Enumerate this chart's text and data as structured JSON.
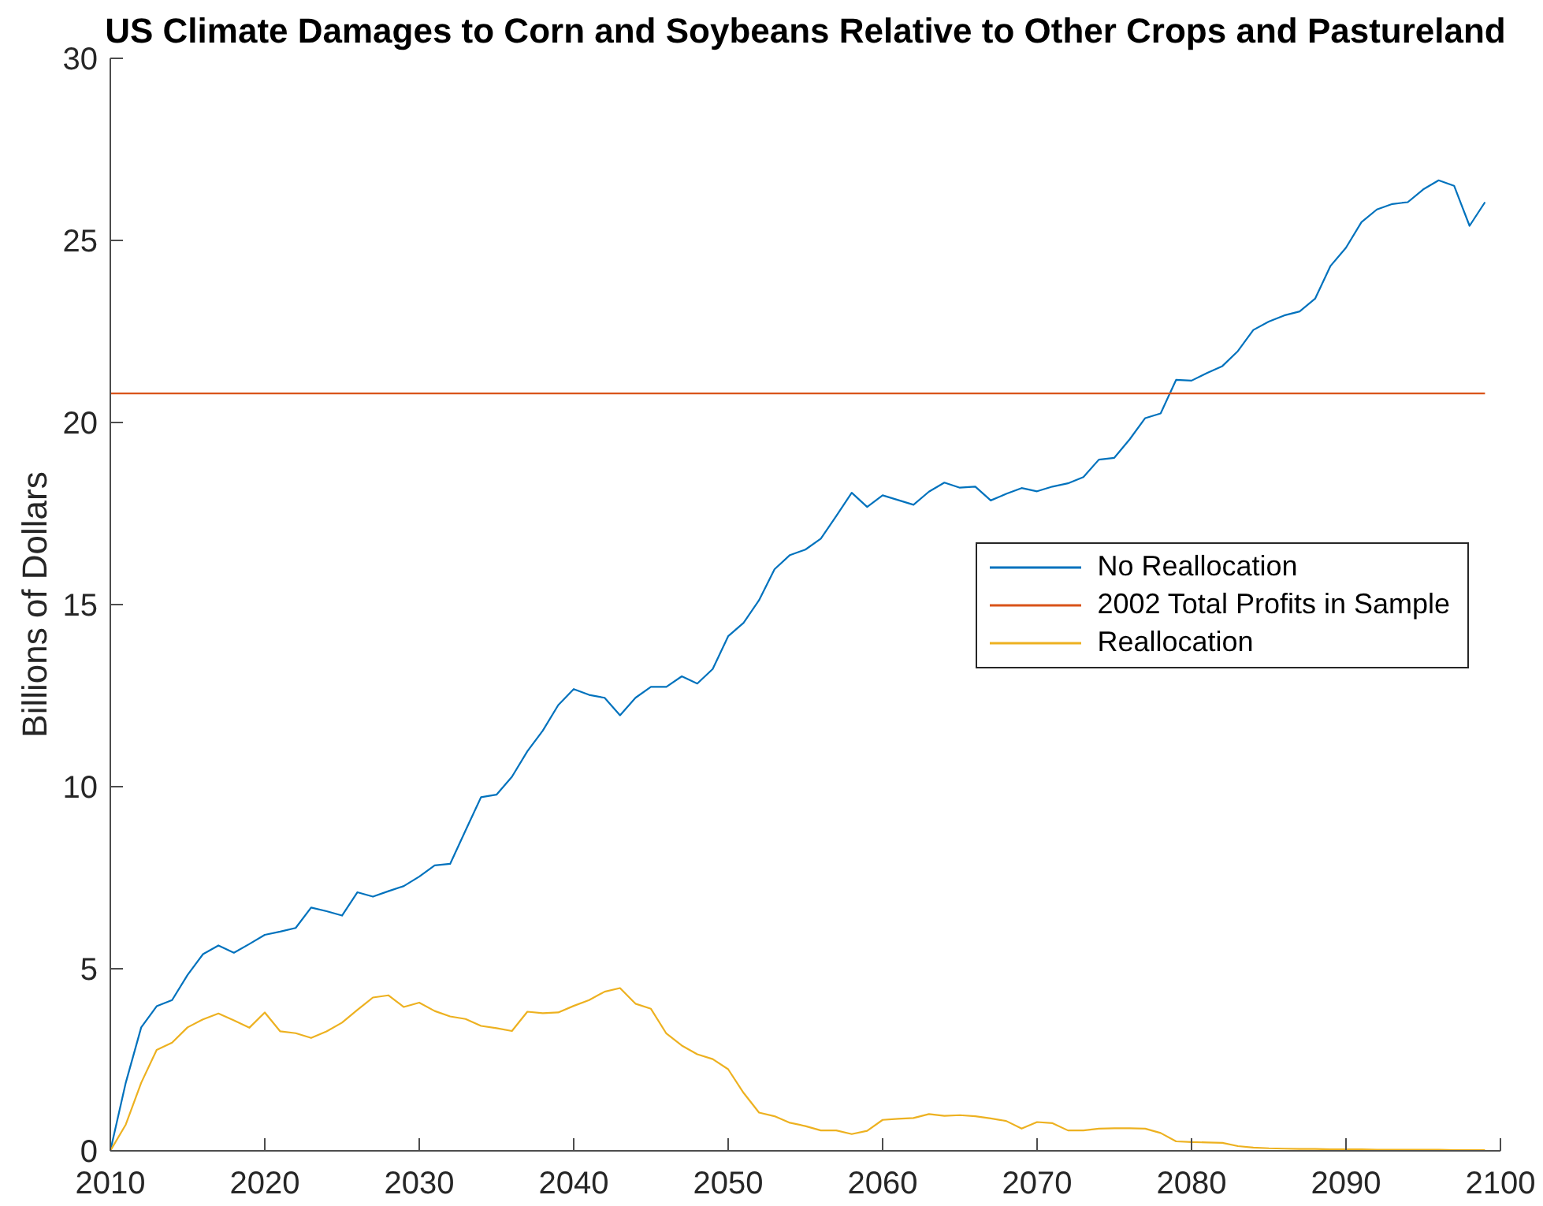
{
  "chart_data": {
    "type": "line",
    "title": "US Climate Damages to Corn and Soybeans Relative to Other Crops and Pastureland",
    "ylabel": "Billions of Dollars",
    "x": [
      2010,
      2011,
      2012,
      2013,
      2014,
      2015,
      2016,
      2017,
      2018,
      2019,
      2020,
      2021,
      2022,
      2023,
      2024,
      2025,
      2026,
      2027,
      2028,
      2029,
      2030,
      2031,
      2032,
      2033,
      2034,
      2035,
      2036,
      2037,
      2038,
      2039,
      2040,
      2041,
      2042,
      2043,
      2044,
      2045,
      2046,
      2047,
      2048,
      2049,
      2050,
      2051,
      2052,
      2053,
      2054,
      2055,
      2056,
      2057,
      2058,
      2059,
      2060,
      2061,
      2062,
      2063,
      2064,
      2065,
      2066,
      2067,
      2068,
      2069,
      2070,
      2071,
      2072,
      2073,
      2074,
      2075,
      2076,
      2077,
      2078,
      2079,
      2080,
      2081,
      2082,
      2083,
      2084,
      2085,
      2086,
      2087,
      2088,
      2089,
      2090,
      2091,
      2092,
      2093,
      2094,
      2095,
      2096,
      2097,
      2098,
      2099
    ],
    "series": [
      {
        "name": "No Reallocation",
        "color": "#0072bd",
        "values": [
          0,
          1.87,
          3.39,
          3.97,
          4.14,
          4.83,
          5.4,
          5.64,
          5.44,
          5.68,
          5.93,
          6.02,
          6.12,
          6.68,
          6.58,
          6.46,
          7.1,
          6.98,
          7.13,
          7.27,
          7.53,
          7.84,
          7.88,
          8.8,
          9.71,
          9.78,
          10.27,
          10.97,
          11.54,
          12.24,
          12.68,
          12.52,
          12.44,
          11.96,
          12.44,
          12.74,
          12.74,
          13.03,
          12.83,
          13.23,
          14.13,
          14.5,
          15.12,
          15.97,
          16.36,
          16.51,
          16.81,
          17.43,
          18.07,
          17.68,
          18.0,
          17.87,
          17.74,
          18.1,
          18.35,
          18.21,
          18.24,
          17.86,
          18.04,
          18.2,
          18.11,
          18.24,
          18.33,
          18.5,
          18.98,
          19.03,
          19.54,
          20.12,
          20.25,
          21.17,
          21.15,
          21.36,
          21.55,
          21.96,
          22.54,
          22.77,
          22.94,
          23.05,
          23.4,
          24.3,
          24.8,
          25.5,
          25.85,
          26.0,
          26.05,
          26.4,
          26.65,
          26.5,
          25.4,
          26.05
        ]
      },
      {
        "name": "2002 Total Profits in Sample",
        "color": "#d95319",
        "x": [
          2010,
          2099
        ],
        "values": [
          20.8,
          20.8
        ]
      },
      {
        "name": "Reallocation",
        "color": "#edb120",
        "values": [
          0,
          0.72,
          1.87,
          2.77,
          2.97,
          3.39,
          3.61,
          3.77,
          3.58,
          3.38,
          3.8,
          3.28,
          3.23,
          3.1,
          3.28,
          3.52,
          3.87,
          4.21,
          4.27,
          3.95,
          4.07,
          3.84,
          3.69,
          3.62,
          3.43,
          3.37,
          3.29,
          3.82,
          3.78,
          3.8,
          3.98,
          4.14,
          4.37,
          4.47,
          4.04,
          3.9,
          3.22,
          2.89,
          2.65,
          2.52,
          2.24,
          1.59,
          1.05,
          0.95,
          0.77,
          0.68,
          0.56,
          0.56,
          0.46,
          0.55,
          0.85,
          0.88,
          0.9,
          1.01,
          0.96,
          0.98,
          0.95,
          0.89,
          0.82,
          0.61,
          0.79,
          0.76,
          0.56,
          0.56,
          0.61,
          0.62,
          0.62,
          0.61,
          0.49,
          0.26,
          0.24,
          0.23,
          0.22,
          0.13,
          0.09,
          0.07,
          0.06,
          0.05,
          0.05,
          0.04,
          0.04,
          0.04,
          0.03,
          0.03,
          0.03,
          0.03,
          0.03,
          0.02,
          0.02,
          0.02
        ]
      }
    ],
    "xlim": [
      2010,
      2100
    ],
    "xticks": [
      2010,
      2020,
      2030,
      2040,
      2050,
      2060,
      2070,
      2080,
      2090,
      2100
    ],
    "ylim": [
      0,
      30
    ],
    "yticks": [
      0,
      5,
      10,
      15,
      20,
      25,
      30
    ],
    "legend": "right"
  }
}
